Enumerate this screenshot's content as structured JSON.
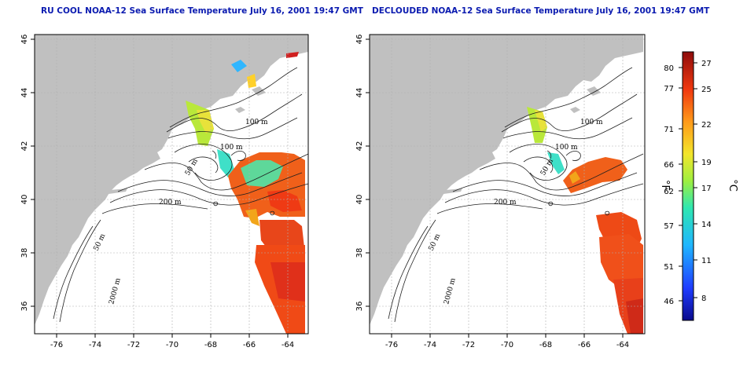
{
  "panels": [
    {
      "id": "left",
      "title": "RU COOL NOAA-12 Sea Surface Temperature July 16, 2001 19:47 GMT",
      "contour_labels": [
        "100 m",
        "100 m",
        "50 m",
        "200 m",
        "50 m",
        "2000 m"
      ]
    },
    {
      "id": "right",
      "title": "DECLOUDED NOAA-12 Sea Surface Temperature July 16, 2001 19:47 GMT",
      "contour_labels": [
        "100 m",
        "100 m",
        "50 m",
        "200 m",
        "50 m",
        "2000 m"
      ]
    }
  ],
  "axes": {
    "x_ticks": [
      "-76",
      "-74",
      "-72",
      "-70",
      "-68",
      "-66",
      "-64"
    ],
    "y_ticks": [
      "36",
      "38",
      "40",
      "42",
      "44",
      "46"
    ]
  },
  "colorbar": {
    "f_unit": "°F",
    "c_unit": "°C",
    "f_ticks": [
      "80",
      "77",
      "71",
      "66",
      "62",
      "57",
      "51",
      "46"
    ],
    "c_ticks": [
      "27",
      "25",
      "22",
      "19",
      "17",
      "14",
      "11",
      "8"
    ]
  },
  "colors": {
    "land": "#c0c0c0",
    "title": "#0b1bb0",
    "grid": "#b0b0b0"
  }
}
